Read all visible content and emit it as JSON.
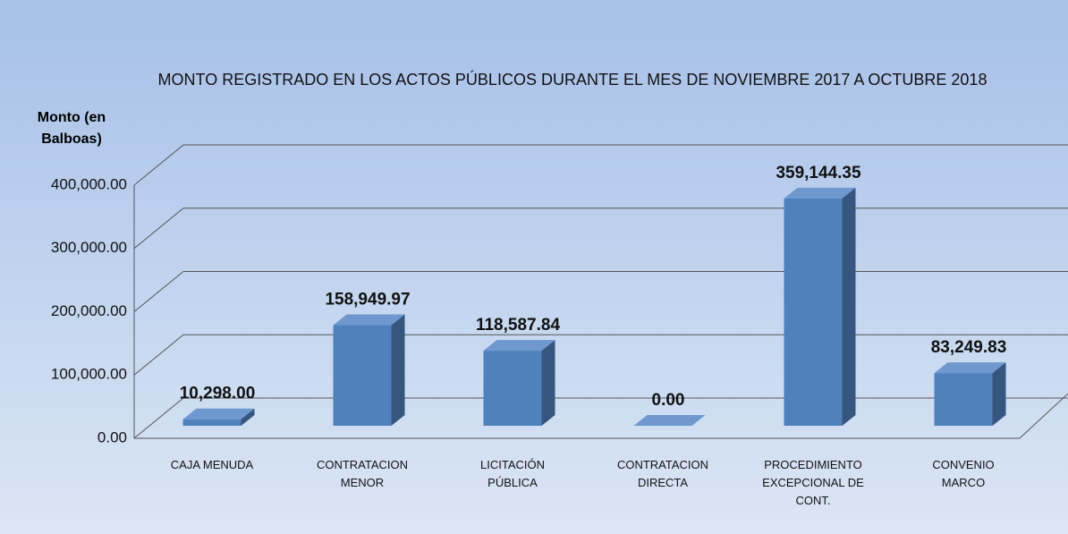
{
  "chart_data": {
    "type": "bar3d",
    "title": "MONTO REGISTRADO EN  LOS ACTOS PÚBLICOS  DURANTE EL MES DE NOVIEMBRE 2017 A OCTUBRE 2018",
    "y_label": "Monto (en Balboas)",
    "categories": [
      "CAJA MENUDA",
      "CONTRATACION MENOR",
      "LICITACIÓN PÚBLICA",
      "CONTRATACION DIRECTA",
      "PROCEDIMIENTO EXCEPCIONAL DE CONT.",
      "CONVENIO MARCO"
    ],
    "values": [
      10298.0,
      158949.97,
      118587.84,
      0.0,
      359144.35,
      83249.83
    ],
    "value_labels": [
      "10,298.00",
      "158,949.97",
      "118,587.84",
      "0.00",
      "359,144.35",
      "83,249.83"
    ],
    "color": "#4f81bd",
    "ylim": [
      0,
      400000
    ],
    "yticks": [
      {
        "value": 0,
        "label": "0.00"
      },
      {
        "value": 100000,
        "label": "100,000.00"
      },
      {
        "value": 200000,
        "label": "200,000.00"
      },
      {
        "value": 300000,
        "label": "300,000.00"
      },
      {
        "value": 400000,
        "label": "400,000.00"
      }
    ],
    "grid": true
  }
}
